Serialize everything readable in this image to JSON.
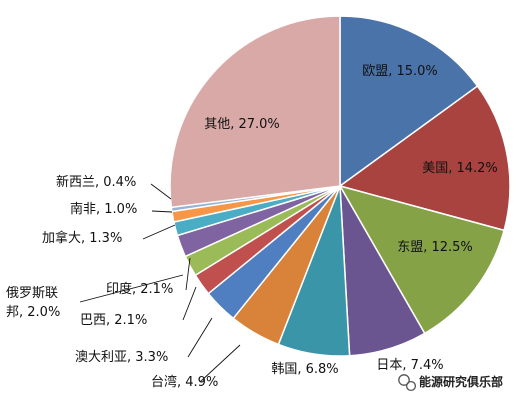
{
  "chart_data": {
    "type": "pie",
    "title": "",
    "start_angle_deg": 0,
    "direction": "clockwise",
    "slices": [
      {
        "label": "欧盟",
        "value": 15.0,
        "text": "欧盟, 15.0%",
        "color": "#4A73AA"
      },
      {
        "label": "美国",
        "value": 14.2,
        "text": "美国, 14.2%",
        "color": "#A84340"
      },
      {
        "label": "东盟",
        "value": 12.5,
        "text": "东盟, 12.5%",
        "color": "#86A247"
      },
      {
        "label": "日本",
        "value": 7.4,
        "text": "日本, 7.4%",
        "color": "#6A5590"
      },
      {
        "label": "韩国",
        "value": 6.8,
        "text": "韩国, 6.8%",
        "color": "#3A95A8"
      },
      {
        "label": "台湾",
        "value": 4.9,
        "text": "台湾, 4.9%",
        "color": "#D8823A"
      },
      {
        "label": "澳大利亚",
        "value": 3.3,
        "text": "澳大利亚, 3.3%",
        "color": "#4F7FC0"
      },
      {
        "label": "巴西",
        "value": 2.1,
        "text": "巴西, 2.1%",
        "color": "#C0504D"
      },
      {
        "label": "俄罗斯联邦",
        "value": 2.0,
        "text": [
          "俄罗斯联",
          "邦, 2.0%"
        ],
        "color": "#9BBB59"
      },
      {
        "label": "印度",
        "value": 2.1,
        "text": "印度, 2.1%",
        "color": "#8064A2"
      },
      {
        "label": "加拿大",
        "value": 1.3,
        "text": "加拿大, 1.3%",
        "color": "#4BACC6"
      },
      {
        "label": "南非",
        "value": 1.0,
        "text": "南非, 1.0%",
        "color": "#F79646"
      },
      {
        "label": "新西兰",
        "value": 0.4,
        "text": "新西兰, 0.4%",
        "color": "#95B3D7"
      },
      {
        "label": "其他",
        "value": 27.0,
        "text": "其他, 27.0%",
        "color": "#D9A9A8"
      }
    ]
  },
  "watermark": {
    "text": "能源研究俱乐部",
    "icon": "wechat-icon"
  }
}
